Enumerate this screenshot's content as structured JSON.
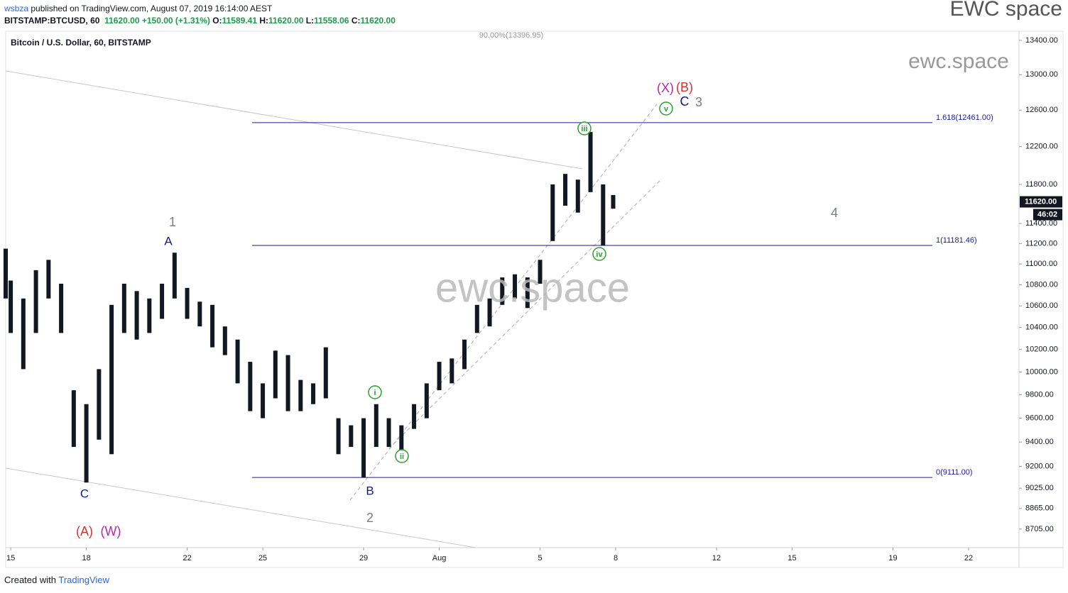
{
  "header": {
    "publisher": "wsbza",
    "published": "published on TradingView.com, August 07, 2019 16:14:00 AEST",
    "symbol": "BITSTAMP:BTCUSD, 60",
    "last": "11620.00",
    "change": "+150.00 (+1.31%)",
    "ohlc": [
      {
        "key": "O:",
        "value": "11589.41"
      },
      {
        "key": "H:",
        "value": "11620.00"
      },
      {
        "key": "L:",
        "value": "11558.06"
      },
      {
        "key": "C:",
        "value": "11620.00"
      }
    ],
    "brand": "EWC space"
  },
  "chart_data": {
    "type": "range_bar",
    "title": "Bitcoin / U.S. Dollar, 60, BITSTAMP",
    "color": "#131722",
    "x": [
      -0.2,
      0,
      0.5,
      1,
      1.5,
      2,
      2.5,
      3,
      3.5,
      4,
      4.5,
      5,
      5.5,
      6,
      6.5,
      7,
      7.5,
      8,
      8.5,
      9,
      9.5,
      10,
      10.5,
      11,
      11.5,
      12,
      12.5,
      13,
      13.5,
      14,
      14.5,
      15,
      15.5,
      16,
      16.5,
      17,
      17.5,
      18,
      18.5,
      19,
      19.5,
      20,
      20.5,
      21,
      21.5,
      22,
      22.5,
      23,
      23.5,
      23.9
    ],
    "high": [
      11150,
      10840,
      10670,
      10940,
      11040,
      10810,
      9840,
      9720,
      10025,
      10610,
      10810,
      10740,
      10670,
      10810,
      11110,
      10770,
      10640,
      10610,
      10410,
      10290,
      10090,
      9900,
      10190,
      10150,
      9930,
      9900,
      10220,
      9600,
      9540,
      9600,
      9720,
      9600,
      9540,
      9720,
      9900,
      10090,
      10120,
      10290,
      10610,
      10670,
      10870,
      10900,
      10870,
      11040,
      11800,
      11910,
      11850,
      12360,
      11800,
      11690
    ],
    "low": [
      10670,
      10350,
      10025,
      10350,
      10670,
      10350,
      9360,
      9070,
      9420,
      9300,
      10350,
      10290,
      10350,
      10480,
      10670,
      10480,
      10410,
      10220,
      10150,
      9900,
      9660,
      9600,
      9770,
      9660,
      9660,
      9720,
      9770,
      9300,
      9360,
      9111,
      9360,
      9360,
      9300,
      9510,
      9600,
      9840,
      9900,
      10025,
      10350,
      10410,
      10610,
      10670,
      10580,
      10810,
      11225,
      11580,
      11510,
      11720,
      11181,
      11550
    ],
    "xlim": [
      -0.2,
      40
    ],
    "xticks": [
      {
        "value": 0,
        "label": "15"
      },
      {
        "value": 3,
        "label": "18"
      },
      {
        "value": 7,
        "label": "22"
      },
      {
        "value": 10,
        "label": "25"
      },
      {
        "value": 14,
        "label": "29"
      },
      {
        "value": 17,
        "label": "Aug"
      },
      {
        "value": 21,
        "label": "5"
      },
      {
        "value": 24,
        "label": "8"
      },
      {
        "value": 28,
        "label": "12"
      },
      {
        "value": 31,
        "label": "15"
      },
      {
        "value": 35,
        "label": "19"
      },
      {
        "value": 38,
        "label": "22"
      }
    ],
    "ylim": [
      8564,
      13500
    ],
    "log": true,
    "grid": false,
    "yticks": [
      {
        "value": 13400,
        "label": "13400.00"
      },
      {
        "value": 13000,
        "label": "13000.00"
      },
      {
        "value": 12600,
        "label": "12600.00"
      },
      {
        "value": 12200,
        "label": "12200.00"
      },
      {
        "value": 11800,
        "label": "11800.00"
      },
      {
        "value": 11400,
        "label": "11400.00"
      },
      {
        "value": 11200,
        "label": "11200.00"
      },
      {
        "value": 11000,
        "label": "11000.00"
      },
      {
        "value": 10800,
        "label": "10800.00"
      },
      {
        "value": 10600,
        "label": "10600.00"
      },
      {
        "value": 10400,
        "label": "10400.00"
      },
      {
        "value": 10200,
        "label": "10200.00"
      },
      {
        "value": 10000,
        "label": "10000.00"
      },
      {
        "value": 9800,
        "label": "9800.00"
      },
      {
        "value": 9600,
        "label": "9600.00"
      },
      {
        "value": 9400,
        "label": "9400.00"
      },
      {
        "value": 9200,
        "label": "9200.00"
      },
      {
        "value": 9025,
        "label": "9025.00"
      },
      {
        "value": 8865,
        "label": "8865.00"
      },
      {
        "value": 8705,
        "label": "8705.00"
      }
    ],
    "last_price": {
      "value": 11620,
      "label": "11620.00"
    },
    "countdown": "46:02",
    "levels": [
      {
        "value": 12461,
        "label": "1.618(12461.00)"
      },
      {
        "value": 11181.46,
        "label": "1(11181.46)"
      },
      {
        "value": 9111,
        "label": "0(9111.00)"
      }
    ],
    "level_color": "#1a1aa6",
    "top_level_label": "90.00%(13396.95)",
    "annotations": [
      {
        "text": "1",
        "color": "#787b86"
      },
      {
        "text": "A",
        "color": "#0d1a8c"
      },
      {
        "text": "C",
        "color": "#0d1a8c"
      },
      {
        "text": "(A)",
        "color": "#e03030"
      },
      {
        "text": "(W)",
        "color": "#c020b0"
      },
      {
        "text": "B",
        "color": "#0d1a8c"
      },
      {
        "text": "2",
        "color": "#787b86"
      },
      {
        "text": "i",
        "color": "#2ca02c"
      },
      {
        "text": "ii",
        "color": "#2ca02c"
      },
      {
        "text": "iii",
        "color": "#2ca02c"
      },
      {
        "text": "iv",
        "color": "#2ca02c"
      },
      {
        "text": "v",
        "color": "#2ca02c"
      },
      {
        "text": "(X)",
        "color": "#c020b0"
      },
      {
        "text": "(B)",
        "color": "#e03030"
      },
      {
        "text": "C",
        "color": "#0d1a8c"
      },
      {
        "text": "3",
        "color": "#787b86"
      },
      {
        "text": "4",
        "color": "#787b86"
      }
    ],
    "watermarks": [
      "ewc.space",
      "ewc.space"
    ]
  },
  "footer": {
    "created": "Created with",
    "brand": "TradingView"
  }
}
